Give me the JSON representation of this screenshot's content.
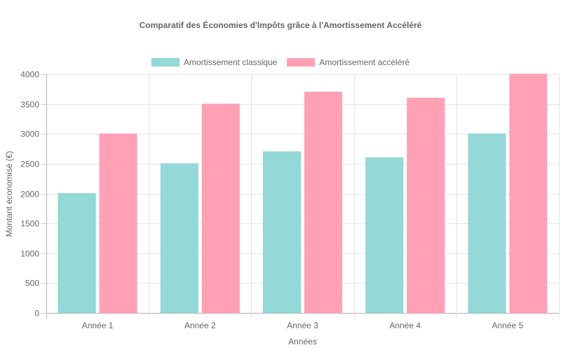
{
  "chart_data": {
    "type": "bar",
    "title": "Comparatif des Économies d'Impôts grâce à l'Amortissement Accéléré",
    "xlabel": "Années",
    "ylabel": "Montant économisé (€)",
    "categories": [
      "Année 1",
      "Année 2",
      "Année 3",
      "Année 4",
      "Année 5"
    ],
    "series": [
      {
        "name": "Amortissement classique",
        "values": [
          2000,
          2500,
          2700,
          2600,
          3000
        ],
        "color": "#93d9d8",
        "border": "#8fd3d2"
      },
      {
        "name": "Amortissement accéléré",
        "values": [
          3000,
          3500,
          3700,
          3600,
          4000
        ],
        "color": "#ffa0b4",
        "border": "#ff9fb3"
      }
    ],
    "ylim": [
      0,
      4000
    ],
    "yticks": [
      0,
      500,
      1000,
      1500,
      2000,
      2500,
      3000,
      3500,
      4000
    ],
    "grid": true,
    "legend_position": "top"
  },
  "chart": {
    "title": "Comparatif des Économies d'Impôts grâce à l'Amortissement Accéléré",
    "xlabel": "Années",
    "ylabel": "Montant économisé (€)",
    "legend": {
      "classique": "Amortissement classique",
      "accelere": "Amortissement accéléré"
    }
  }
}
